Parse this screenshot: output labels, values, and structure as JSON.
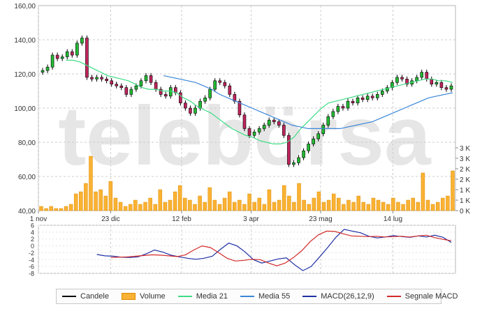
{
  "watermark": "telebörsa",
  "chart_data": [
    {
      "type": "candlestick",
      "name": "price",
      "y_ticks": [
        "160,00",
        "140,00",
        "120,00",
        "100,00",
        "80,00",
        "60,00",
        "40,00"
      ],
      "ylim": [
        40,
        160
      ],
      "x_ticks": [
        "1 nov",
        "23 dic",
        "12 feb",
        "3 apr",
        "23 mag",
        "14 lug"
      ],
      "x_tick_days": [
        0,
        52,
        103,
        153,
        203,
        255
      ],
      "x_range_days": [
        0,
        300
      ],
      "volume_ticks": [
        "0 K",
        "1 K",
        "1 K",
        "2 K",
        "2 K",
        "3 K",
        "3 K"
      ],
      "volume_max": 3,
      "close": [
        122,
        124,
        131,
        129,
        130,
        133,
        131,
        138,
        141,
        118,
        117,
        118,
        117,
        116,
        114,
        113,
        112,
        108,
        111,
        113,
        116,
        119,
        115,
        111,
        108,
        107,
        112,
        109,
        103,
        100,
        97,
        100,
        104,
        106,
        111,
        116,
        115,
        113,
        108,
        104,
        96,
        88,
        84,
        86,
        88,
        90,
        93,
        92,
        90,
        84,
        67,
        68,
        71,
        75,
        79,
        82,
        85,
        90,
        95,
        98,
        101,
        100,
        104,
        103,
        106,
        105,
        107,
        106,
        108,
        110,
        112,
        115,
        118,
        117,
        114,
        116,
        118,
        121,
        117,
        114,
        115,
        112,
        111,
        113
      ],
      "ma21": [
        128,
        128,
        127,
        125,
        123,
        121,
        119,
        118,
        117,
        116,
        114,
        112,
        111,
        111,
        110,
        110,
        109,
        106,
        104,
        101,
        99,
        97,
        94,
        91,
        88,
        86,
        84,
        83,
        81,
        80,
        79,
        79,
        80,
        83,
        88,
        92,
        96,
        100,
        103,
        104,
        105,
        106,
        107,
        108,
        109,
        110,
        111,
        112,
        113,
        114,
        115,
        116,
        117,
        117,
        116,
        116,
        115
      ],
      "ma55": [
        119,
        118,
        117,
        116,
        115,
        113,
        111,
        108,
        106,
        104,
        102,
        100,
        98,
        96,
        94,
        92,
        90,
        89,
        88,
        88,
        88,
        88,
        88,
        89,
        90,
        91,
        92,
        94,
        96,
        98,
        100,
        102,
        104,
        106,
        107,
        108,
        109
      ],
      "volume": [
        0.2,
        0.1,
        0.2,
        0.1,
        0.1,
        0.2,
        0.3,
        0.8,
        0.9,
        1.3,
        2.6,
        0.9,
        1.0,
        0.7,
        1.4,
        0.6,
        0.4,
        0.2,
        0.3,
        0.5,
        0.3,
        0.4,
        0.6,
        0.3,
        1.0,
        0.4,
        0.5,
        0.9,
        1.2,
        0.6,
        0.5,
        0.3,
        0.7,
        0.4,
        1.1,
        0.5,
        0.3,
        0.6,
        0.9,
        0.4,
        0.5,
        0.3,
        0.8,
        0.4,
        0.6,
        0.3,
        1.0,
        0.4,
        0.5,
        1.2,
        0.7,
        0.4,
        1.3,
        0.5,
        0.3,
        0.6,
        0.9,
        0.4,
        0.5,
        0.8,
        0.6,
        0.3,
        0.5,
        0.4,
        0.7,
        0.4,
        0.3,
        0.6,
        0.5,
        0.4,
        0.3,
        0.6,
        0.4,
        0.3,
        0.5,
        0.6,
        0.4,
        1.8,
        0.5,
        0.3,
        0.4,
        0.6,
        0.7,
        1.9
      ]
    },
    {
      "type": "line",
      "name": "macd",
      "y_ticks": [
        "6",
        "4",
        "2",
        "0",
        "-2",
        "-4",
        "-6",
        "-8"
      ],
      "ylim": [
        -8,
        6
      ],
      "macd": [
        -2.5,
        -2.9,
        -3.0,
        -3.3,
        -3.4,
        -3.2,
        -2.3,
        -1.2,
        -1.8,
        -2.7,
        -3.2,
        -3.6,
        -3.9,
        -3.6,
        -3.0,
        -1.0,
        0.8,
        0.0,
        -1.8,
        -4.0,
        -5.0,
        -4.4,
        -3.8,
        -3.5,
        -5.5,
        -7.2,
        -6.0,
        -3.3,
        -0.5,
        2.5,
        4.8,
        4.3,
        3.8,
        2.8,
        2.3,
        2.6,
        3.0,
        2.7,
        2.5,
        2.9,
        2.6,
        3.1,
        2.5,
        1.0
      ],
      "signal": [
        -3.4,
        -3.3,
        -3.2,
        -3.0,
        -2.8,
        -2.6,
        -2.7,
        -2.9,
        -3.1,
        -2.6,
        -1.2,
        0.0,
        -0.5,
        -2.0,
        -3.6,
        -4.4,
        -4.2,
        -3.9,
        -4.0,
        -5.0,
        -5.8,
        -5.0,
        -3.4,
        -1.4,
        1.2,
        3.2,
        4.3,
        4.2,
        3.5,
        2.9,
        2.8,
        2.7,
        2.8,
        2.6,
        2.7,
        2.8,
        2.6,
        2.9,
        3.1,
        2.4,
        1.9,
        1.5
      ]
    }
  ],
  "legend": [
    {
      "label": "Candele",
      "color": "#000000",
      "kind": "line"
    },
    {
      "label": "Volume",
      "color": "#f9b233",
      "kind": "box"
    },
    {
      "label": "Media 21",
      "color": "#3ddc84",
      "kind": "line"
    },
    {
      "label": "Media 55",
      "color": "#3a86d8",
      "kind": "line"
    },
    {
      "label": "MACD(26,12,9)",
      "color": "#1f2fa6",
      "kind": "line"
    },
    {
      "label": "Segnale MACD",
      "color": "#d42a2a",
      "kind": "line"
    }
  ],
  "colors": {
    "up": "#22bb33",
    "down": "#c0245c",
    "volume": "#f9b233",
    "volume_edge": "#e08a00",
    "grid": "#cccccc"
  }
}
